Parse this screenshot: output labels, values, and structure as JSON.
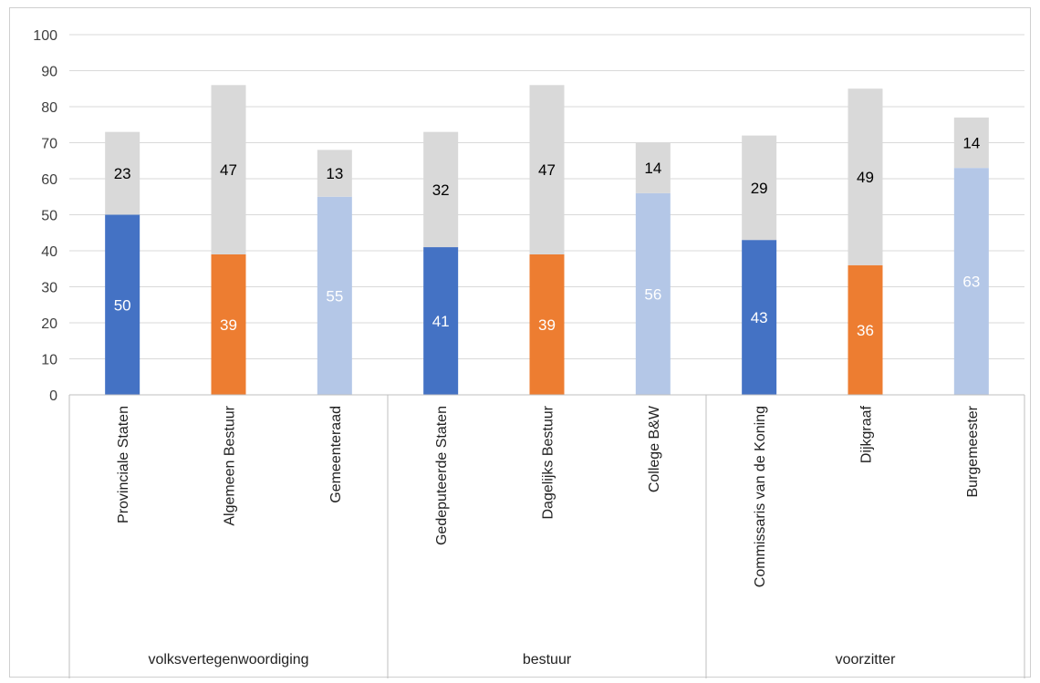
{
  "chart_data": {
    "type": "bar",
    "stacked": true,
    "ylim": [
      0,
      100
    ],
    "yticks": [
      0,
      10,
      20,
      30,
      40,
      50,
      60,
      70,
      80,
      90,
      100
    ],
    "grid": true,
    "legend": "none",
    "categories": [
      "Provinciale Staten",
      "Algemeen Bestuur",
      "Gemeenteraad",
      "Gedeputeerde Staten",
      "Dagelijks Bestuur",
      "College B&W",
      "Commissaris van de Koning",
      "Dijkgraaf",
      "Burgemeester"
    ],
    "groups": [
      {
        "label": "volksvertegenwoordiging",
        "categories": [
          0,
          1,
          2
        ]
      },
      {
        "label": "bestuur",
        "categories": [
          3,
          4,
          5
        ]
      },
      {
        "label": "voorzitter",
        "categories": [
          6,
          7,
          8
        ]
      }
    ],
    "series": [
      {
        "values": [
          50,
          39,
          55,
          41,
          39,
          56,
          43,
          36,
          63
        ],
        "colors": [
          "#4472c4",
          "#ed7d31",
          "#b4c7e7",
          "#4472c4",
          "#ed7d31",
          "#b4c7e7",
          "#4472c4",
          "#ed7d31",
          "#b4c7e7"
        ],
        "label_color": "#ffffff"
      },
      {
        "values": [
          23,
          47,
          13,
          32,
          47,
          14,
          29,
          49,
          14
        ],
        "colors": [
          "#d9d9d9",
          "#d9d9d9",
          "#d9d9d9",
          "#d9d9d9",
          "#d9d9d9",
          "#d9d9d9",
          "#d9d9d9",
          "#d9d9d9",
          "#d9d9d9"
        ],
        "label_color": "#000000"
      }
    ]
  }
}
